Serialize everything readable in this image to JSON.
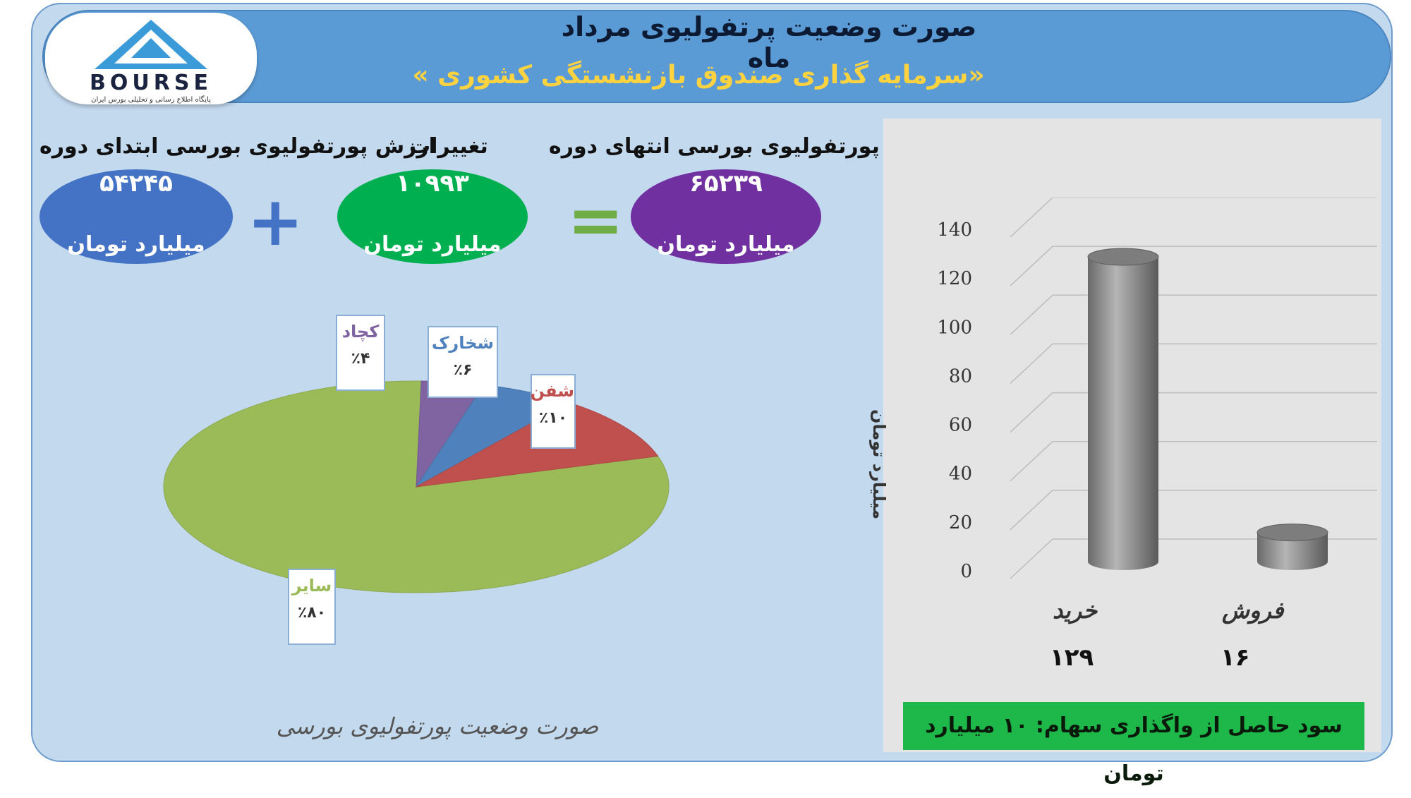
{
  "header": {
    "title": "صورت وضعیت پرتفولیوی مرداد ماه",
    "subtitle": "«سرمایه گذاری صندوق بازنشستگی کشوری »"
  },
  "logo": {
    "text": "BOURSE",
    "subtext": "پایگاه اطلاع رسانی و تحلیلی بورس ایران"
  },
  "summary": {
    "start": {
      "label": "ارزش پورتفولیوی بورسی ابتدای دوره",
      "value": "۵۴۲۴۵",
      "unit": "میلیارد تومان",
      "color": "#4472c4"
    },
    "change": {
      "label": "تغییرات",
      "value": "۱۰۹۹۳",
      "unit": "میلیارد تومان",
      "color": "#00b050"
    },
    "end": {
      "label": "ارزش پورتفولیوی بورسی انتهای دوره",
      "value": "۶۵۲۳۹",
      "unit": "میلیارد تومان",
      "color": "#7030a0"
    },
    "plus": "+",
    "equals": "="
  },
  "chart_data": [
    {
      "type": "pie",
      "title": "صورت وضعیت پورتفولیوی بورسی",
      "slices": [
        {
          "name": "سایر",
          "value": 80,
          "label": "٪۸۰",
          "color": "#9bbb59"
        },
        {
          "name": "کچاد",
          "value": 4,
          "label": "٪۴",
          "color": "#8064a2"
        },
        {
          "name": "شخارک",
          "value": 6,
          "label": "٪۶",
          "color": "#4f81bd"
        },
        {
          "name": "شفن",
          "value": 10,
          "label": "٪۱۰",
          "color": "#c0504d"
        }
      ]
    },
    {
      "type": "bar",
      "categories": [
        "خرید",
        "فروش"
      ],
      "values": [
        129,
        16
      ],
      "value_labels": [
        "۱۲۹",
        "۱۶"
      ],
      "ylabel": "میلیارد تومان",
      "ylim": [
        0,
        140
      ],
      "yticks": [
        0,
        20,
        40,
        60,
        80,
        100,
        120,
        140
      ],
      "grid": true,
      "bar_color": "#8a8a8a"
    }
  ],
  "footer": {
    "text": "سود حاصل از واگذاری سهام: ۱۰ میلیارد تومان"
  }
}
